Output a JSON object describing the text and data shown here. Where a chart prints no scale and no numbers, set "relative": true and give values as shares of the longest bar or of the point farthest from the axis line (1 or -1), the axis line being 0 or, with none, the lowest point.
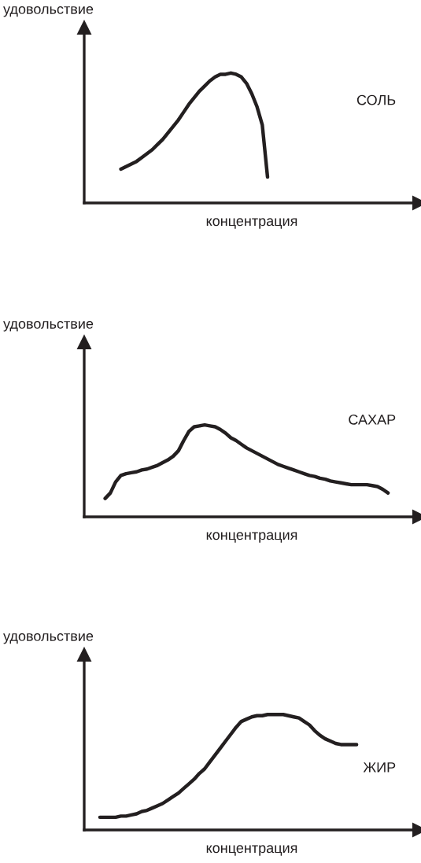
{
  "chart_data": [
    {
      "type": "line",
      "relative": true,
      "ylabel": "удовольствие",
      "xlabel": "концентрация",
      "categories": [
        null,
        null,
        null,
        null,
        null,
        null,
        null,
        null,
        null,
        null,
        null,
        null,
        null,
        null,
        null,
        null,
        null,
        null,
        null,
        null,
        null,
        null,
        null,
        null,
        null,
        null,
        null,
        null,
        null,
        null,
        null,
        null,
        null,
        null,
        null,
        null,
        null,
        null,
        null,
        null,
        null,
        null,
        null,
        null,
        null,
        null,
        null,
        null,
        null,
        null,
        null,
        null,
        null,
        null,
        null,
        null,
        null,
        null,
        null,
        null,
        null,
        null,
        null,
        null
      ],
      "series": [
        {
          "name": "СОЛЬ",
          "color": "#231f20",
          "values": [
            null,
            null,
            null,
            null,
            null,
            null,
            null,
            0.26,
            0.28,
            0.3,
            0.32,
            0.35,
            0.38,
            0.41,
            0.45,
            0.49,
            0.54,
            0.59,
            0.64,
            0.7,
            0.76,
            0.81,
            0.86,
            0.9,
            0.94,
            0.97,
            0.99,
            0.99,
            1.0,
            0.99,
            0.97,
            0.92,
            0.84,
            0.74,
            0.6,
            0.2,
            null,
            null,
            null,
            null,
            null,
            null,
            null,
            null,
            null,
            null,
            null,
            null,
            null,
            null,
            null,
            null,
            null,
            null,
            null,
            null,
            null,
            null,
            null,
            null,
            null,
            null,
            null,
            null
          ]
        }
      ]
    },
    {
      "type": "line",
      "relative": true,
      "ylabel": "удовольствие",
      "xlabel": "концентрация",
      "categories": [
        null,
        null,
        null,
        null,
        null,
        null,
        null,
        null,
        null,
        null,
        null,
        null,
        null,
        null,
        null,
        null,
        null,
        null,
        null,
        null,
        null,
        null,
        null,
        null,
        null,
        null,
        null,
        null,
        null,
        null,
        null,
        null,
        null,
        null,
        null,
        null,
        null,
        null,
        null,
        null,
        null,
        null,
        null,
        null,
        null,
        null,
        null,
        null,
        null,
        null,
        null,
        null,
        null,
        null,
        null,
        null,
        null,
        null,
        null,
        null,
        null,
        null,
        null,
        null
      ],
      "series": [
        {
          "name": "САХАР",
          "color": "#231f20",
          "values": [
            null,
            null,
            null,
            null,
            0.2,
            0.26,
            0.38,
            0.45,
            0.47,
            0.48,
            0.49,
            0.51,
            0.52,
            0.54,
            0.56,
            0.59,
            0.62,
            0.66,
            0.72,
            0.83,
            0.93,
            0.98,
            0.99,
            1.0,
            0.99,
            0.98,
            0.95,
            0.91,
            0.86,
            0.83,
            0.79,
            0.75,
            0.72,
            0.69,
            0.66,
            0.63,
            0.6,
            0.57,
            0.55,
            0.53,
            0.51,
            0.49,
            0.47,
            0.45,
            0.44,
            0.42,
            0.41,
            0.39,
            0.38,
            0.37,
            0.36,
            0.35,
            0.35,
            0.35,
            0.35,
            0.34,
            0.33,
            0.3,
            0.26,
            null,
            null,
            null,
            null,
            null
          ]
        }
      ]
    },
    {
      "type": "line",
      "relative": true,
      "ylabel": "удовольствие",
      "xlabel": "концентрация",
      "categories": [
        null,
        null,
        null,
        null,
        null,
        null,
        null,
        null,
        null,
        null,
        null,
        null,
        null,
        null,
        null,
        null,
        null,
        null,
        null,
        null,
        null,
        null,
        null,
        null,
        null,
        null,
        null,
        null,
        null,
        null,
        null,
        null,
        null,
        null,
        null,
        null,
        null,
        null,
        null,
        null,
        null,
        null,
        null,
        null,
        null,
        null,
        null,
        null,
        null,
        null,
        null,
        null,
        null,
        null,
        null,
        null,
        null,
        null,
        null,
        null,
        null,
        null,
        null,
        null
      ],
      "series": [
        {
          "name": "ЖИР",
          "color": "#231f20",
          "values": [
            null,
            null,
            null,
            0.11,
            0.11,
            0.11,
            0.11,
            0.12,
            0.12,
            0.13,
            0.14,
            0.16,
            0.17,
            0.19,
            0.21,
            0.23,
            0.26,
            0.29,
            0.32,
            0.36,
            0.4,
            0.44,
            0.49,
            0.53,
            0.59,
            0.65,
            0.71,
            0.77,
            0.83,
            0.89,
            0.94,
            0.96,
            0.98,
            0.99,
            0.99,
            1.0,
            1.0,
            1.0,
            1.0,
            0.99,
            0.98,
            0.97,
            0.94,
            0.91,
            0.86,
            0.82,
            0.79,
            0.77,
            0.75,
            0.74,
            0.74,
            0.74,
            0.74,
            null,
            null,
            null,
            null,
            null,
            null,
            null,
            null,
            null,
            null,
            null
          ]
        }
      ]
    }
  ]
}
